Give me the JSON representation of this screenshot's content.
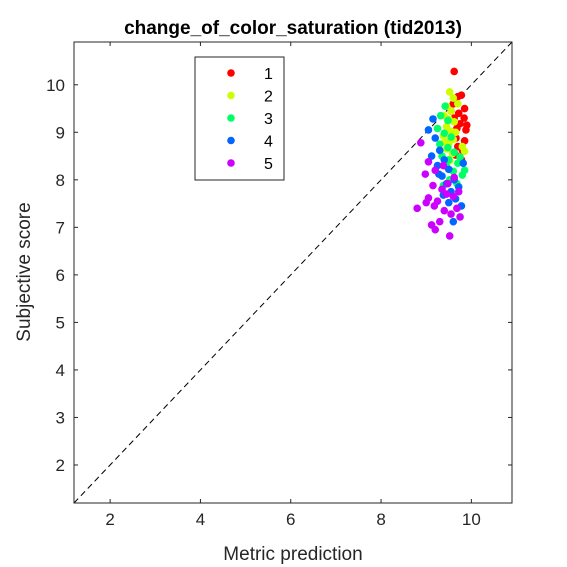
{
  "chart_data": {
    "type": "scatter",
    "title": "change_of_color_saturation (tid2013)",
    "xlabel": "Metric prediction",
    "ylabel": "Subjective score",
    "xlim": [
      1.2,
      10.9
    ],
    "ylim": [
      1.2,
      10.9
    ],
    "xticks": [
      2,
      4,
      6,
      8,
      10
    ],
    "yticks": [
      2,
      3,
      4,
      5,
      6,
      7,
      8,
      9,
      10
    ],
    "grid": false,
    "legend_position": "top-left",
    "reference_line": {
      "style": "dashed",
      "color": "#000000",
      "from": [
        1.2,
        1.2
      ],
      "to": [
        10.9,
        10.9
      ]
    },
    "series": [
      {
        "name": "1",
        "color": "#ff0000",
        "points": [
          [
            9.62,
            10.28
          ],
          [
            9.7,
            9.75
          ],
          [
            9.78,
            9.78
          ],
          [
            9.6,
            9.6
          ],
          [
            9.85,
            9.5
          ],
          [
            9.72,
            9.4
          ],
          [
            9.62,
            9.3
          ],
          [
            9.84,
            9.3
          ],
          [
            9.75,
            9.18
          ],
          [
            9.68,
            9.08
          ],
          [
            9.88,
            9.05
          ],
          [
            9.6,
            8.98
          ],
          [
            9.85,
            8.82
          ],
          [
            9.7,
            8.7
          ],
          [
            9.8,
            8.62
          ],
          [
            9.65,
            8.52
          ],
          [
            9.78,
            8.42
          ],
          [
            9.55,
            9.45
          ],
          [
            9.9,
            9.15
          ],
          [
            9.66,
            8.88
          ]
        ]
      },
      {
        "name": "2",
        "color": "#ccff00",
        "points": [
          [
            9.52,
            9.85
          ],
          [
            9.6,
            9.72
          ],
          [
            9.45,
            9.55
          ],
          [
            9.55,
            9.45
          ],
          [
            9.4,
            9.35
          ],
          [
            9.5,
            9.28
          ],
          [
            9.62,
            9.22
          ],
          [
            9.45,
            9.12
          ],
          [
            9.55,
            9.02
          ],
          [
            9.38,
            8.92
          ],
          [
            9.6,
            8.85
          ],
          [
            9.5,
            8.75
          ],
          [
            9.45,
            8.65
          ],
          [
            9.8,
            8.7
          ],
          [
            9.58,
            8.55
          ],
          [
            9.7,
            9.6
          ],
          [
            9.65,
            9.0
          ],
          [
            9.42,
            8.8
          ],
          [
            9.85,
            8.6
          ],
          [
            9.52,
            8.4
          ]
        ]
      },
      {
        "name": "3",
        "color": "#00ff66",
        "points": [
          [
            9.42,
            9.55
          ],
          [
            9.32,
            9.35
          ],
          [
            9.48,
            9.25
          ],
          [
            9.25,
            9.08
          ],
          [
            9.4,
            8.98
          ],
          [
            9.55,
            8.9
          ],
          [
            9.3,
            8.75
          ],
          [
            9.48,
            8.68
          ],
          [
            9.62,
            8.58
          ],
          [
            9.35,
            8.5
          ],
          [
            9.5,
            8.42
          ],
          [
            9.7,
            8.35
          ],
          [
            9.45,
            8.28
          ],
          [
            9.6,
            8.18
          ],
          [
            9.8,
            8.1
          ],
          [
            9.52,
            8.0
          ],
          [
            9.68,
            7.92
          ],
          [
            9.38,
            7.88
          ],
          [
            9.85,
            8.2
          ],
          [
            9.75,
            8.48
          ]
        ]
      },
      {
        "name": "4",
        "color": "#0066ff",
        "points": [
          [
            9.15,
            9.28
          ],
          [
            9.05,
            9.05
          ],
          [
            9.2,
            8.88
          ],
          [
            9.3,
            8.62
          ],
          [
            9.12,
            8.5
          ],
          [
            9.4,
            8.42
          ],
          [
            9.25,
            8.3
          ],
          [
            9.5,
            8.22
          ],
          [
            9.35,
            8.08
          ],
          [
            9.62,
            8.0
          ],
          [
            9.45,
            7.92
          ],
          [
            9.72,
            7.85
          ],
          [
            9.55,
            7.75
          ],
          [
            9.38,
            7.68
          ],
          [
            9.65,
            7.6
          ],
          [
            9.5,
            7.52
          ],
          [
            9.78,
            7.45
          ],
          [
            9.6,
            7.12
          ],
          [
            9.28,
            8.12
          ],
          [
            9.82,
            8.35
          ]
        ]
      },
      {
        "name": "5",
        "color": "#cc00ff",
        "points": [
          [
            8.88,
            8.78
          ],
          [
            9.05,
            8.38
          ],
          [
            9.2,
            8.2
          ],
          [
            8.98,
            8.12
          ],
          [
            9.15,
            7.88
          ],
          [
            9.35,
            7.8
          ],
          [
            9.05,
            7.62
          ],
          [
            9.25,
            7.55
          ],
          [
            9.45,
            7.7
          ],
          [
            9.6,
            7.65
          ],
          [
            9.72,
            7.75
          ],
          [
            9.18,
            7.45
          ],
          [
            9.4,
            7.35
          ],
          [
            9.55,
            7.28
          ],
          [
            9.68,
            7.4
          ],
          [
            8.8,
            7.4
          ],
          [
            9.0,
            7.52
          ],
          [
            9.3,
            7.12
          ],
          [
            9.12,
            7.05
          ],
          [
            9.52,
            6.82
          ],
          [
            9.2,
            6.95
          ],
          [
            9.48,
            7.92
          ],
          [
            9.62,
            8.05
          ],
          [
            9.38,
            8.3
          ],
          [
            9.75,
            7.22
          ]
        ]
      }
    ]
  }
}
